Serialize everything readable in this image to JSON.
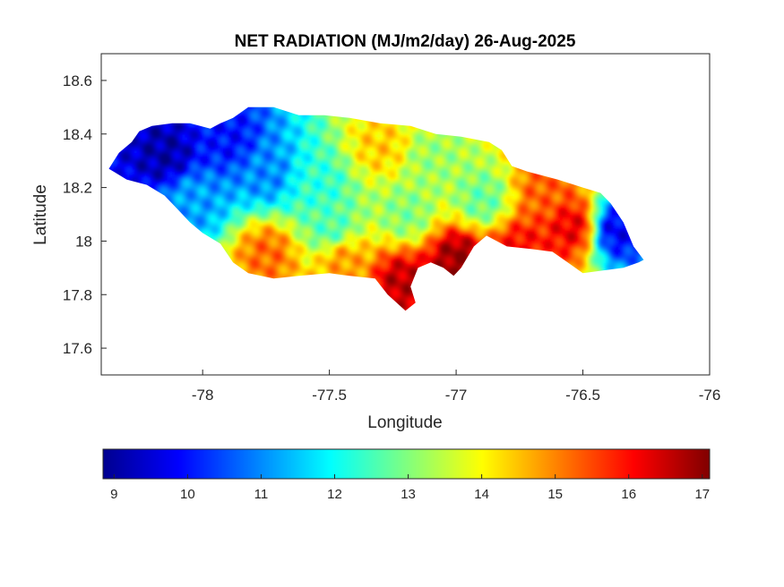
{
  "chart_data": {
    "type": "heatmap",
    "title": "NET RADIATION (MJ/m2/day) 26-Aug-2025",
    "xlabel": "Longitude",
    "ylabel": "Latitude",
    "xlim": [
      -78.4,
      -76
    ],
    "ylim": [
      17.5,
      18.7
    ],
    "x_ticks": [
      -78,
      -77.5,
      -77,
      -76.5,
      -76
    ],
    "x_tick_labels": [
      "-78",
      "-77.5",
      "-77",
      "-76.5",
      "-76"
    ],
    "y_ticks": [
      17.6,
      17.8,
      18,
      18.2,
      18.4,
      18.6
    ],
    "y_tick_labels": [
      "17.6",
      "17.8",
      "18",
      "18.2",
      "18.4",
      "18.6"
    ],
    "colormap": "jet",
    "colorbar": {
      "range": [
        8.85,
        17.1
      ],
      "ticks": [
        9,
        10,
        11,
        12,
        13,
        14,
        15,
        16,
        17
      ],
      "tick_labels": [
        "9",
        "10",
        "11",
        "12",
        "13",
        "14",
        "15",
        "16",
        "17"
      ],
      "orientation": "horizontal"
    },
    "region_outline_lonlat": [
      [
        -78.37,
        18.27
      ],
      [
        -78.33,
        18.33
      ],
      [
        -78.28,
        18.37
      ],
      [
        -78.25,
        18.41
      ],
      [
        -78.2,
        18.43
      ],
      [
        -78.12,
        18.44
      ],
      [
        -78.05,
        18.44
      ],
      [
        -77.97,
        18.42
      ],
      [
        -77.93,
        18.44
      ],
      [
        -77.88,
        18.46
      ],
      [
        -77.82,
        18.5
      ],
      [
        -77.72,
        18.5
      ],
      [
        -77.62,
        18.47
      ],
      [
        -77.52,
        18.47
      ],
      [
        -77.42,
        18.46
      ],
      [
        -77.3,
        18.44
      ],
      [
        -77.18,
        18.43
      ],
      [
        -77.08,
        18.4
      ],
      [
        -76.98,
        18.39
      ],
      [
        -76.87,
        18.37
      ],
      [
        -76.82,
        18.34
      ],
      [
        -76.78,
        18.28
      ],
      [
        -76.72,
        18.26
      ],
      [
        -76.6,
        18.23
      ],
      [
        -76.5,
        18.2
      ],
      [
        -76.43,
        18.18
      ],
      [
        -76.39,
        18.14
      ],
      [
        -76.34,
        18.07
      ],
      [
        -76.3,
        17.98
      ],
      [
        -76.26,
        17.93
      ],
      [
        -76.28,
        17.92
      ],
      [
        -76.34,
        17.9
      ],
      [
        -76.42,
        17.89
      ],
      [
        -76.5,
        17.88
      ],
      [
        -76.56,
        17.92
      ],
      [
        -76.62,
        17.96
      ],
      [
        -76.7,
        17.97
      ],
      [
        -76.8,
        17.98
      ],
      [
        -76.88,
        18.02
      ],
      [
        -76.93,
        17.98
      ],
      [
        -76.98,
        17.9
      ],
      [
        -77.01,
        17.87
      ],
      [
        -77.05,
        17.9
      ],
      [
        -77.1,
        17.92
      ],
      [
        -77.15,
        17.9
      ],
      [
        -77.18,
        17.83
      ],
      [
        -77.16,
        17.77
      ],
      [
        -77.2,
        17.74
      ],
      [
        -77.27,
        17.8
      ],
      [
        -77.32,
        17.86
      ],
      [
        -77.42,
        17.87
      ],
      [
        -77.5,
        17.88
      ],
      [
        -77.62,
        17.87
      ],
      [
        -77.72,
        17.86
      ],
      [
        -77.82,
        17.88
      ],
      [
        -77.88,
        17.92
      ],
      [
        -77.93,
        17.99
      ],
      [
        -78.0,
        18.03
      ],
      [
        -78.05,
        18.07
      ],
      [
        -78.1,
        18.12
      ],
      [
        -78.15,
        18.17
      ],
      [
        -78.22,
        18.21
      ],
      [
        -78.3,
        18.23
      ],
      [
        -78.37,
        18.27
      ]
    ],
    "field_hotspots": [
      {
        "lon": -78.15,
        "lat": 18.32,
        "value": 9.2
      },
      {
        "lon": -77.9,
        "lat": 18.38,
        "value": 10.0
      },
      {
        "lon": -77.75,
        "lat": 18.25,
        "value": 11.0
      },
      {
        "lon": -78.05,
        "lat": 18.15,
        "value": 11.2
      },
      {
        "lon": -77.55,
        "lat": 18.2,
        "value": 12.3
      },
      {
        "lon": -77.5,
        "lat": 18.05,
        "value": 12.6
      },
      {
        "lon": -77.3,
        "lat": 18.35,
        "value": 14.4
      },
      {
        "lon": -77.1,
        "lat": 18.3,
        "value": 13.2
      },
      {
        "lon": -77.2,
        "lat": 18.1,
        "value": 13.0
      },
      {
        "lon": -76.9,
        "lat": 18.15,
        "value": 12.8
      },
      {
        "lon": -76.65,
        "lat": 18.18,
        "value": 15.3
      },
      {
        "lon": -76.55,
        "lat": 18.05,
        "value": 16.2
      },
      {
        "lon": -76.37,
        "lat": 18.04,
        "value": 9.8
      },
      {
        "lon": -77.22,
        "lat": 17.84,
        "value": 16.6
      },
      {
        "lon": -77.0,
        "lat": 17.93,
        "value": 16.9
      },
      {
        "lon": -77.75,
        "lat": 17.95,
        "value": 15.2
      },
      {
        "lon": -77.45,
        "lat": 17.92,
        "value": 14.8
      },
      {
        "lon": -76.75,
        "lat": 17.97,
        "value": 16.0
      }
    ]
  }
}
